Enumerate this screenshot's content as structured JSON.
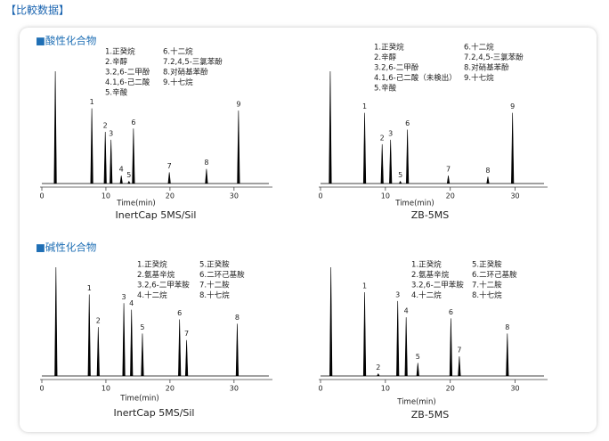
{
  "header": "【比較数据】",
  "sections": [
    "■酸性化合物",
    "■碱性化合物"
  ],
  "chart_data": [
    {
      "type": "chromatogram",
      "title": "InertCap 5MS/Sil",
      "xlabel": "Time(min)",
      "legend": [
        [
          "1.正癸烷",
          "2.辛醇",
          "3.2,6-二甲酚",
          "4.1,6-己二酸",
          "5.辛酸"
        ],
        [
          "6.十二烷",
          "7.2,4,5-三氯苯酚",
          "8.对硝基苯酚",
          "9.十七烷"
        ]
      ],
      "peak_labels": [
        null,
        "1",
        "2",
        "3",
        "4",
        "5",
        "6",
        "7",
        "8",
        "9"
      ],
      "x": [
        2.1,
        7.8,
        9.9,
        10.8,
        12.4,
        13.6,
        14.3,
        19.9,
        25.7,
        30.7
      ],
      "values": [
        100,
        67,
        46,
        39,
        7,
        2,
        49,
        10,
        13,
        65
      ],
      "xlim": [
        0,
        36
      ],
      "xticks": [
        0,
        10,
        20,
        30
      ],
      "ylim": [
        0,
        100
      ],
      "color": "#000000"
    },
    {
      "type": "chromatogram",
      "title": "ZB-5MS",
      "xlabel": "Time(min)",
      "legend": [
        [
          "1.正癸烷",
          "2.辛醇",
          "3.2,6-二甲酚",
          "4.1,6-己二酸（未検出）",
          "5.辛酸"
        ],
        [
          "6.十二烷",
          "7.2,4,5-三氯苯酚",
          "8.对硝基苯酚",
          "9.十七烷"
        ]
      ],
      "peak_labels": [
        null,
        "1",
        "2",
        "3",
        "5",
        "6",
        "7",
        "8",
        "9"
      ],
      "x": [
        1.5,
        6.8,
        9.5,
        10.8,
        12.3,
        13.4,
        19.7,
        25.8,
        29.6
      ],
      "values": [
        100,
        63,
        35,
        39,
        2,
        48,
        7,
        6,
        63
      ],
      "xlim": [
        0,
        35
      ],
      "xticks": [
        0,
        10,
        20,
        30
      ],
      "ylim": [
        0,
        100
      ],
      "color": "#000000"
    },
    {
      "type": "chromatogram",
      "title": "InertCap 5MS/Sil",
      "xlabel": "Time(min)",
      "legend": [
        [
          "1.正癸烷",
          "2.氨基辛烷",
          "3.2,6-二甲苯胺",
          "4.十二烷"
        ],
        [
          "5.正癸胺",
          "6.二环己基胺",
          "7.十二胺",
          "8.十七烷"
        ]
      ],
      "peak_labels": [
        null,
        "1",
        "2",
        "3",
        "4",
        "5",
        "6",
        "7",
        "8"
      ],
      "x": [
        2.2,
        7.4,
        8.8,
        12.8,
        14.0,
        15.7,
        21.5,
        22.6,
        30.5
      ],
      "values": [
        100,
        75,
        45,
        67,
        61,
        39,
        52,
        33,
        48
      ],
      "xlim": [
        0,
        36
      ],
      "xticks": [
        0,
        10,
        20,
        30
      ],
      "ylim": [
        0,
        100
      ],
      "color": "#000000"
    },
    {
      "type": "chromatogram",
      "title": "ZB-5MS",
      "xlabel": "Time(min)",
      "legend": [
        [
          "1.正癸烷",
          "2.氨基辛烷",
          "3.2,6-二甲苯胺",
          "4.十二烷"
        ],
        [
          "5.正癸胺",
          "6.二环己基胺",
          "7.十二胺",
          "8.十七烷"
        ]
      ],
      "peak_labels": [
        null,
        "1",
        "2",
        "3",
        "4",
        "5",
        "6",
        "7",
        "8"
      ],
      "x": [
        1.6,
        6.8,
        8.9,
        11.9,
        13.2,
        15.0,
        20.1,
        21.4,
        28.8
      ],
      "values": [
        100,
        77,
        2,
        69,
        54,
        12,
        53,
        18,
        39
      ],
      "xlim": [
        0,
        35
      ],
      "xticks": [
        0,
        10,
        20,
        30
      ],
      "ylim": [
        0,
        100
      ],
      "color": "#000000"
    }
  ]
}
